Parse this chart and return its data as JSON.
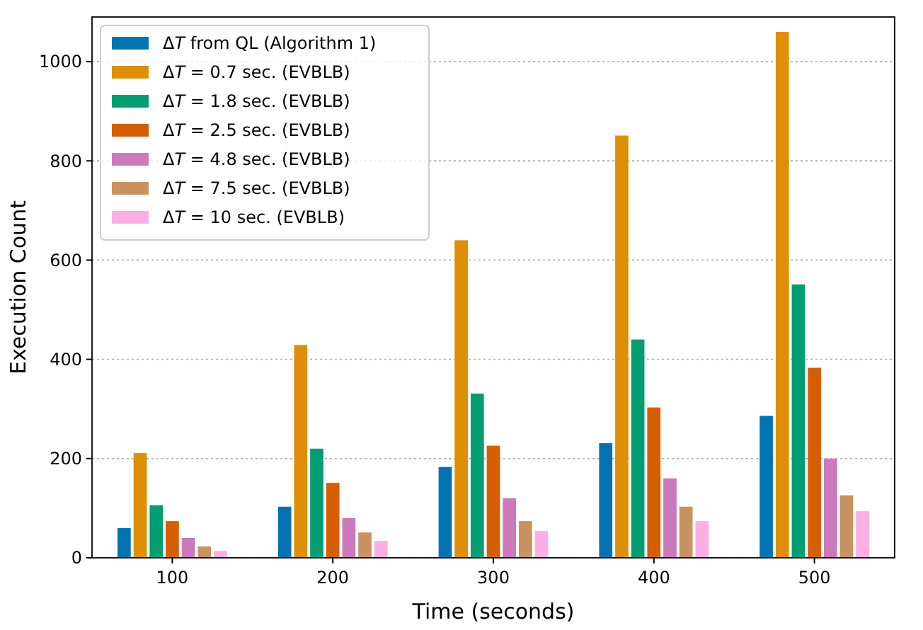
{
  "chart_data": {
    "type": "bar",
    "xlabel": "Time (seconds)",
    "ylabel": "Execution Count",
    "categories": [
      "100",
      "200",
      "300",
      "400",
      "500"
    ],
    "ylim": [
      0,
      1090
    ],
    "yticks": [
      0,
      200,
      400,
      600,
      800,
      1000
    ],
    "grid": "y",
    "legend": "top left",
    "series": [
      {
        "name": "ΔT from QL (Algorithm 1)",
        "color": "#0173b2",
        "values": [
          60,
          103,
          183,
          231,
          286
        ]
      },
      {
        "name": "ΔT = 0.7 sec. (EVBLB)",
        "color": "#de8f05",
        "values": [
          211,
          429,
          640,
          851,
          1060
        ]
      },
      {
        "name": "ΔT = 1.8 sec. (EVBLB)",
        "color": "#029e73",
        "values": [
          106,
          220,
          331,
          440,
          551
        ]
      },
      {
        "name": "ΔT = 2.5 sec. (EVBLB)",
        "color": "#d55e00",
        "values": [
          74,
          151,
          226,
          303,
          383
        ]
      },
      {
        "name": "ΔT = 4.8 sec. (EVBLB)",
        "color": "#cc78bc",
        "values": [
          40,
          80,
          120,
          160,
          200
        ]
      },
      {
        "name": "ΔT = 7.5 sec. (EVBLB)",
        "color": "#ca9161",
        "values": [
          23,
          51,
          74,
          103,
          126
        ]
      },
      {
        "name": "ΔT = 10 sec. (EVBLB)",
        "color": "#fbafe4",
        "values": [
          14,
          34,
          54,
          74,
          94
        ]
      }
    ]
  }
}
